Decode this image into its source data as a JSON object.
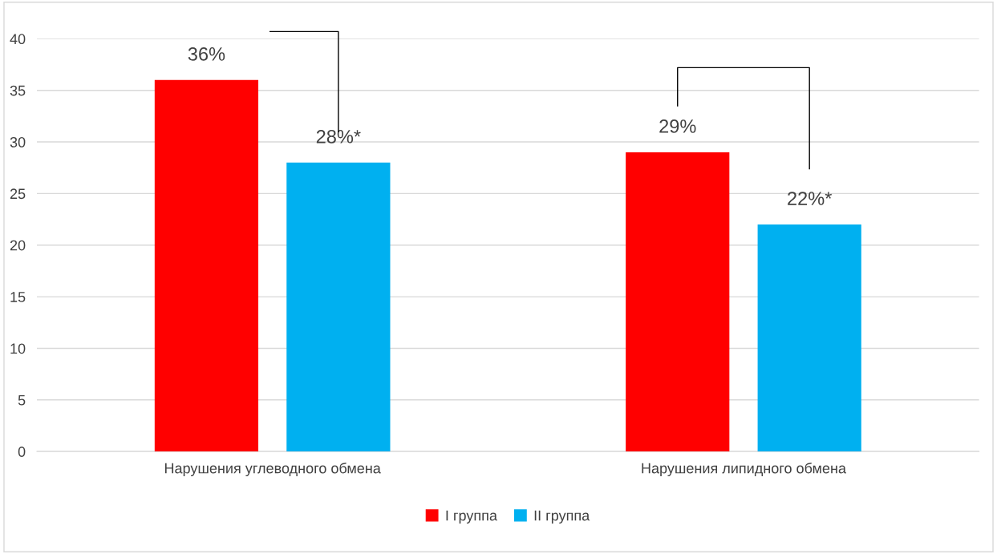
{
  "chart_data": {
    "type": "bar",
    "categories": [
      "Нарушения углеводного обмена",
      "Нарушения липидного обмена"
    ],
    "series": [
      {
        "name": "I группа",
        "color": "#ff0000",
        "values": [
          36,
          29
        ],
        "value_labels": [
          "36%",
          "29%"
        ]
      },
      {
        "name": "II группа",
        "color": "#00b0f0",
        "values": [
          28,
          22
        ],
        "value_labels": [
          "28%*",
          "22%*"
        ]
      }
    ],
    "ylim": [
      0,
      40
    ],
    "yticks": [
      0,
      5,
      10,
      15,
      20,
      25,
      30,
      35,
      40
    ],
    "grid": "y",
    "legend": "bottom"
  }
}
